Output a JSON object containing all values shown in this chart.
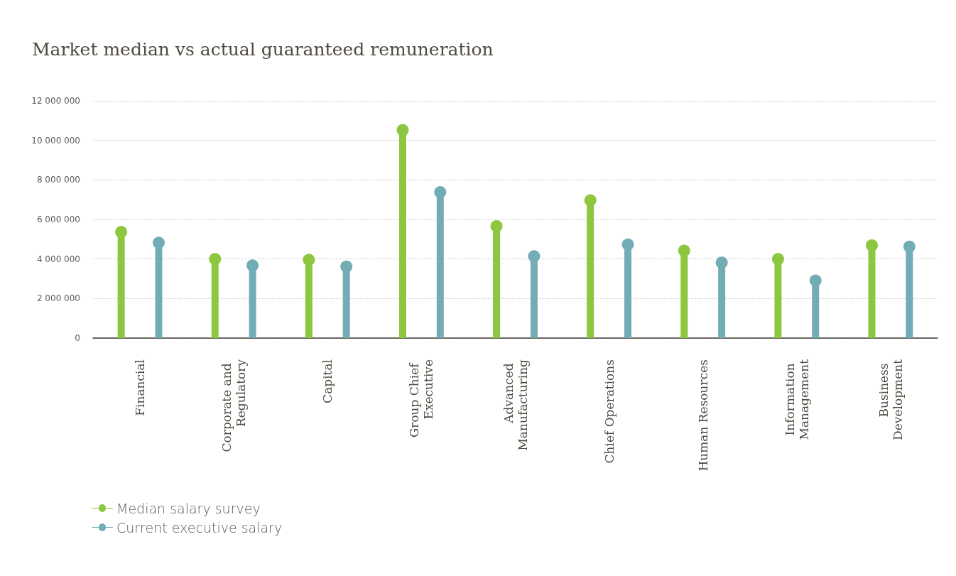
{
  "chart_data": {
    "type": "lollipop",
    "title": "Market median vs actual guaranteed remuneration",
    "categories": [
      "Financial",
      "Corporate and Regulatory",
      "Capital",
      "Group Chief Executive",
      "Advanced Manufacturing",
      "Chief Operations",
      "Human Resources",
      "Information Management",
      "Business Development"
    ],
    "series": [
      {
        "name": "Median salary survey",
        "color": "#8dc63f",
        "values": [
          5370000,
          4000000,
          3960000,
          10520000,
          5660000,
          6970000,
          4420000,
          4000000,
          4690000
        ]
      },
      {
        "name": "Current executive salary",
        "color": "#72adb5",
        "values": [
          4820000,
          3670000,
          3620000,
          7380000,
          4140000,
          4730000,
          3820000,
          2910000,
          4630000
        ]
      }
    ],
    "ylim": [
      0,
      12000000
    ],
    "yticks": [
      {
        "value": 0,
        "label": "0"
      },
      {
        "value": 2000000,
        "label": "2 000 000"
      },
      {
        "value": 4000000,
        "label": "4 000 000"
      },
      {
        "value": 6000000,
        "label": "6 000 000"
      },
      {
        "value": 8000000,
        "label": "8 000 000"
      },
      {
        "value": 10000000,
        "label": "10 000 000"
      },
      {
        "value": 12000000,
        "label": "12 000 000"
      }
    ],
    "grid": "y",
    "legend": "bottom left",
    "marker": "circle"
  }
}
